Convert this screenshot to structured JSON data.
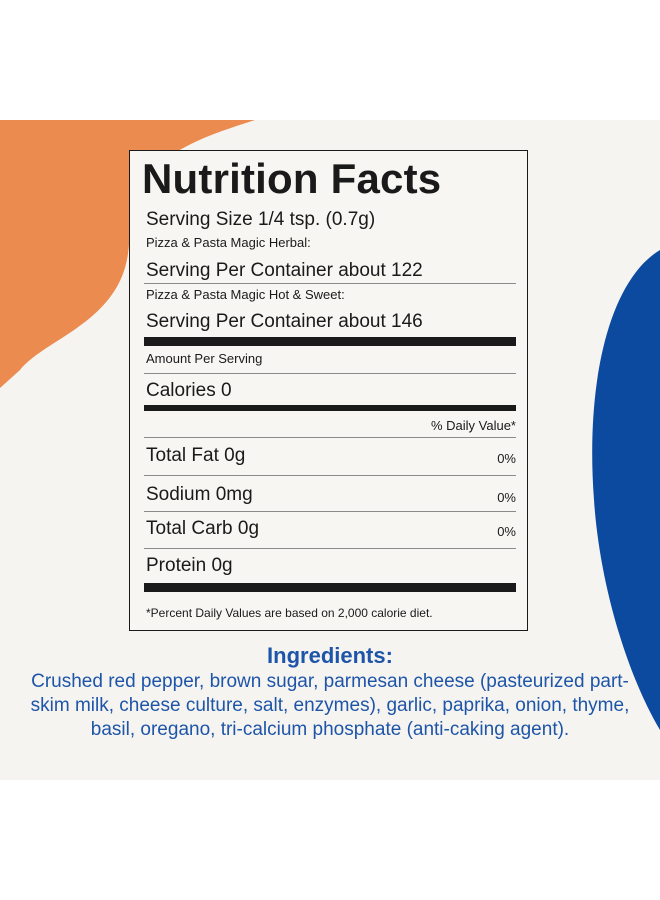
{
  "colors": {
    "orange_shape": "#ec8b4f",
    "blue_shape": "#0c4aa0",
    "ingredients_text": "#1e55a8",
    "panel_background": "#f5f4f1"
  },
  "label": {
    "title": "Nutrition Facts",
    "serving_size": "Serving Size 1/4 tsp. (0.7g)",
    "variant_1_name": "Pizza & Pasta Magic Herbal:",
    "variant_1_servings": "Serving Per Container about 122",
    "variant_2_name": "Pizza & Pasta Magic Hot & Sweet:",
    "variant_2_servings": "Serving Per Container about 146",
    "amount_per_serving": "Amount Per Serving",
    "calories": "Calories 0",
    "daily_value_header": "% Daily Value*",
    "nutrients": [
      {
        "name": "Total Fat 0g",
        "dv": "0%"
      },
      {
        "name": "Sodium 0mg",
        "dv": "0%"
      },
      {
        "name": "Total Carb 0g",
        "dv": "0%"
      },
      {
        "name": "Protein 0g",
        "dv": ""
      }
    ],
    "footnote": "*Percent Daily Values are based on 2,000 calorie diet."
  },
  "ingredients": {
    "heading": "Ingredients:",
    "text": "Crushed red pepper, brown sugar, parmesan cheese (pasteurized part-skim milk, cheese culture, salt, enzymes), garlic, paprika, onion, thyme, basil, oregano, tri-calcium phosphate (anti-caking agent)."
  }
}
